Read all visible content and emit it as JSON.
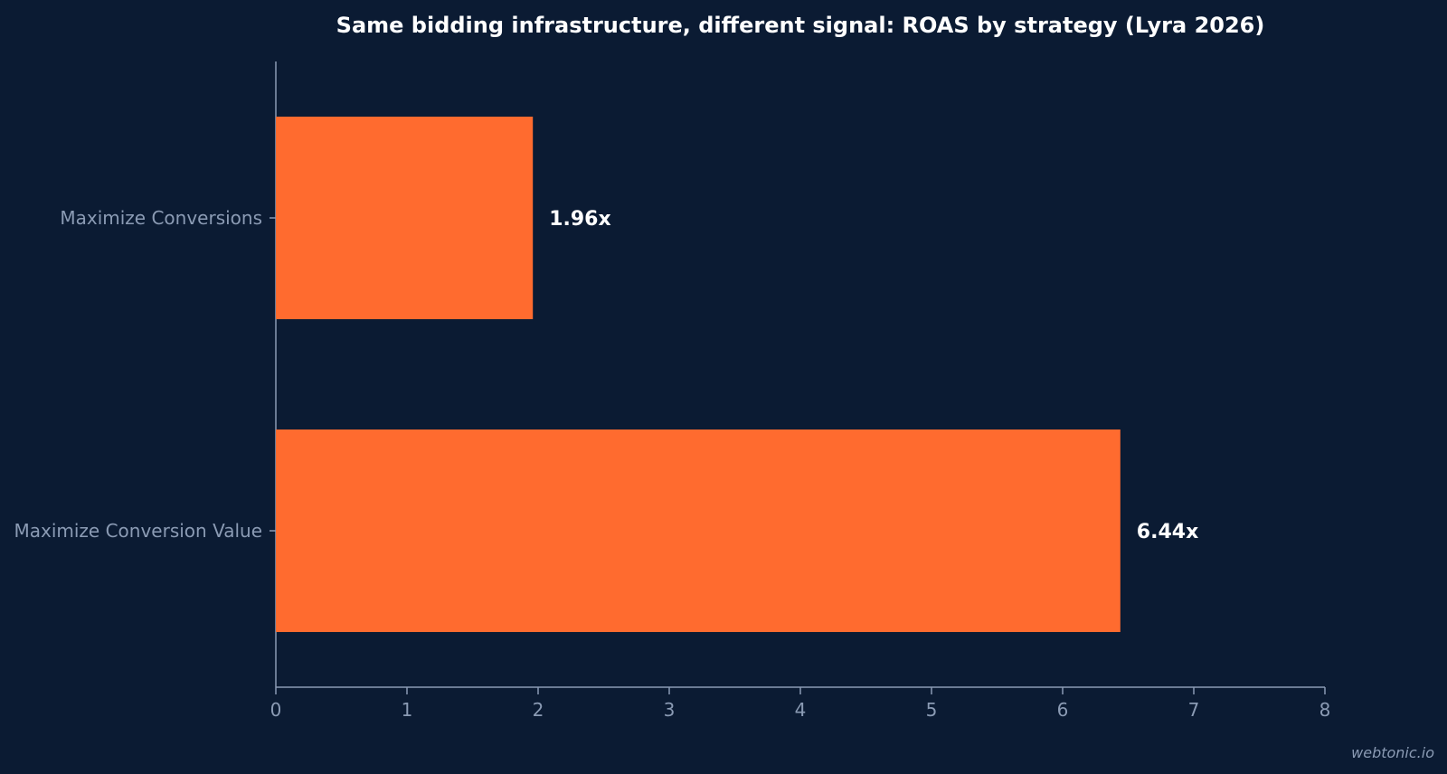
{
  "colors": {
    "background": "#0b1b33",
    "bar": "#ff6b2f",
    "axis": "#8b9bb4",
    "title": "#ffffff",
    "value_label": "#ffffff"
  },
  "watermark": "webtonic.io",
  "chart_data": {
    "type": "bar",
    "orientation": "horizontal",
    "title": "Same bidding infrastructure, different signal: ROAS by strategy (Lyra 2026)",
    "xlabel": "",
    "ylabel": "",
    "categories": [
      "Maximize Conversions",
      "Maximize Conversion Value"
    ],
    "values": [
      1.96,
      6.44
    ],
    "value_labels": [
      "1.96x",
      "6.44x"
    ],
    "xlim": [
      0,
      8
    ],
    "xticks": [
      "0",
      "1",
      "2",
      "3",
      "4",
      "5",
      "6",
      "7",
      "8"
    ],
    "grid": false,
    "legend": "none"
  }
}
